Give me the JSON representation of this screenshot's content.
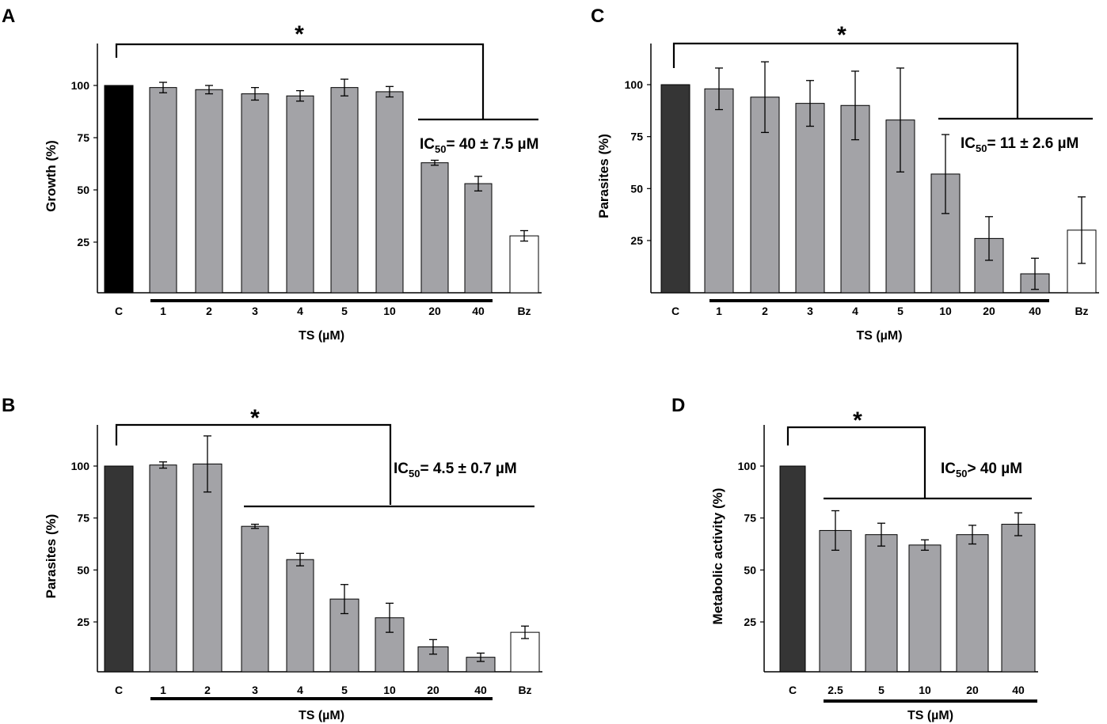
{
  "chart_data": [
    {
      "type": "bar",
      "panel": "A",
      "ylabel": "Growth (%)",
      "xlabel": "TS (µM)",
      "y_ticks": [
        "25",
        "50",
        "75",
        "100"
      ],
      "ylim": [
        0,
        120
      ],
      "categories": [
        "C",
        "1",
        "2",
        "3",
        "4",
        "5",
        "10",
        "20",
        "40",
        "Bz"
      ],
      "values": [
        100,
        99,
        98,
        96,
        95,
        99,
        97,
        63,
        53,
        28
      ],
      "errors": [
        0,
        2.5,
        2,
        3,
        2.5,
        4,
        2.5,
        1.2,
        3.5,
        2.5
      ],
      "bar_styles": [
        "black",
        "gray",
        "gray",
        "gray",
        "gray",
        "gray",
        "gray",
        "gray",
        "gray",
        "white"
      ],
      "significance": "*",
      "ic50_prefix": "IC",
      "ic50_sub": "50",
      "ic50_suffix": "= 40 ± 7.5 µM"
    },
    {
      "type": "bar",
      "panel": "C",
      "ylabel": "Parasites (%)",
      "xlabel": "TS (µM)",
      "y_ticks": [
        "25",
        "50",
        "75",
        "100"
      ],
      "ylim": [
        0,
        120
      ],
      "categories": [
        "C",
        "1",
        "2",
        "3",
        "4",
        "5",
        "10",
        "20",
        "40",
        "Bz"
      ],
      "values": [
        100,
        98,
        94,
        91,
        90,
        83,
        57,
        26,
        9,
        30
      ],
      "errors": [
        0,
        10,
        17,
        11,
        16.5,
        25,
        19,
        10.5,
        7.5,
        16
      ],
      "bar_styles": [
        "dark",
        "gray",
        "gray",
        "gray",
        "gray",
        "gray",
        "gray",
        "gray",
        "gray",
        "white"
      ],
      "significance": "*",
      "ic50_prefix": "IC",
      "ic50_sub": "50",
      "ic50_suffix": "= 11 ± 2.6 µM"
    },
    {
      "type": "bar",
      "panel": "B",
      "ylabel": "Parasites (%)",
      "xlabel": "TS (µM)",
      "y_ticks": [
        "25",
        "50",
        "75",
        "100"
      ],
      "ylim": [
        0,
        120
      ],
      "categories": [
        "C",
        "1",
        "2",
        "3",
        "4",
        "5",
        "10",
        "20",
        "40",
        "Bz"
      ],
      "values": [
        100,
        100.5,
        101,
        71,
        55,
        36,
        27,
        13,
        8,
        20
      ],
      "errors": [
        0,
        1.5,
        13.5,
        1,
        3,
        7,
        7,
        3.5,
        2,
        3
      ],
      "bar_styles": [
        "dark",
        "gray",
        "gray",
        "gray",
        "gray",
        "gray",
        "gray",
        "gray",
        "gray",
        "white"
      ],
      "significance": "*",
      "ic50_prefix": "IC",
      "ic50_sub": "50",
      "ic50_suffix": "= 4.5 ± 0.7 µM"
    },
    {
      "type": "bar",
      "panel": "D",
      "ylabel": "Metabolic activity (%)",
      "xlabel": "TS (µM)",
      "y_ticks": [
        "25",
        "50",
        "75",
        "100"
      ],
      "ylim": [
        0,
        120
      ],
      "categories": [
        "C",
        "2.5",
        "5",
        "10",
        "20",
        "40"
      ],
      "values": [
        100,
        69,
        67,
        62,
        67,
        72
      ],
      "errors": [
        0,
        9.5,
        5.5,
        2.5,
        4.5,
        5.5
      ],
      "bar_styles": [
        "dark",
        "gray",
        "gray",
        "gray",
        "gray",
        "gray"
      ],
      "significance": "*",
      "ic50_prefix": "IC",
      "ic50_sub": "50",
      "ic50_suffix": "> 40 µM"
    }
  ]
}
